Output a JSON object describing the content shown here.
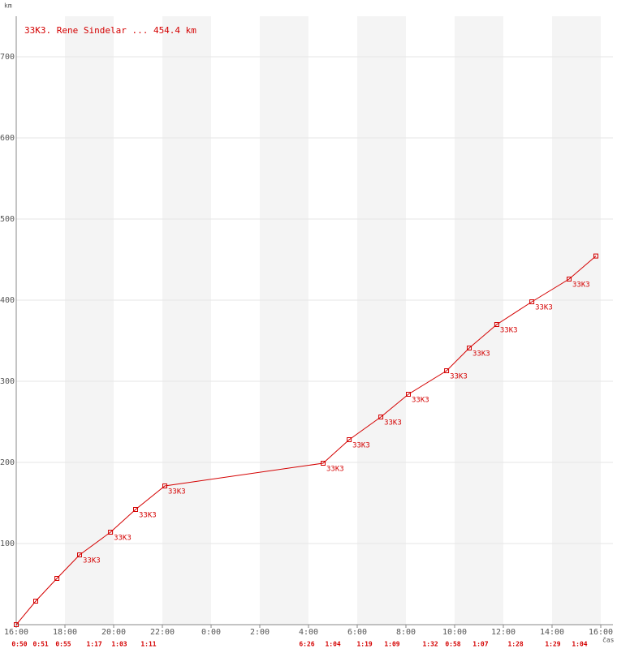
{
  "chart_data": {
    "type": "line",
    "title": "33K3. Rene Sindelar ... 454.4 km",
    "y_label": "km",
    "x_label": "čas",
    "color": "#d40000",
    "x": [
      0,
      0.8,
      1.67,
      2.6,
      3.87,
      4.9,
      6.1,
      12.6,
      13.67,
      14.97,
      16.1,
      17.67,
      18.6,
      19.73,
      21.17,
      22.7,
      23.8
    ],
    "values": [
      0,
      29,
      57,
      86,
      114,
      142,
      171,
      199,
      228,
      256,
      284,
      313,
      341,
      370,
      398,
      426,
      454.4
    ],
    "point_labels": [
      null,
      null,
      null,
      "33K3",
      "33K3",
      "33K3",
      "33K3",
      "33K3",
      "33K3",
      "33K3",
      "33K3",
      "33K3",
      "33K3",
      "33K3",
      "33K3",
      "33K3",
      null
    ],
    "lap_times": [
      "0:50",
      "0:51",
      "0:55",
      "1:17",
      "1:03",
      "1:11",
      "6:26",
      "1:04",
      "1:19",
      "1:09",
      "1:32",
      "0:58",
      "1:07",
      "1:28",
      "1:29",
      "1:04"
    ],
    "xlim": [
      0,
      24
    ],
    "xticks": [
      {
        "value": 0,
        "label": "16:00"
      },
      {
        "value": 2,
        "label": "18:00"
      },
      {
        "value": 4,
        "label": "20:00"
      },
      {
        "value": 6,
        "label": "22:00"
      },
      {
        "value": 8,
        "label": "0:00"
      },
      {
        "value": 10,
        "label": "2:00"
      },
      {
        "value": 12,
        "label": "4:00"
      },
      {
        "value": 14,
        "label": "6:00"
      },
      {
        "value": 16,
        "label": "8:00"
      },
      {
        "value": 18,
        "label": "10:00"
      },
      {
        "value": 20,
        "label": "12:00"
      },
      {
        "value": 22,
        "label": "14:00"
      },
      {
        "value": 24,
        "label": "16:00"
      }
    ],
    "ylim": [
      0,
      750
    ],
    "yticks": [
      100,
      200,
      300,
      400,
      500,
      600,
      700
    ],
    "grid": true
  }
}
